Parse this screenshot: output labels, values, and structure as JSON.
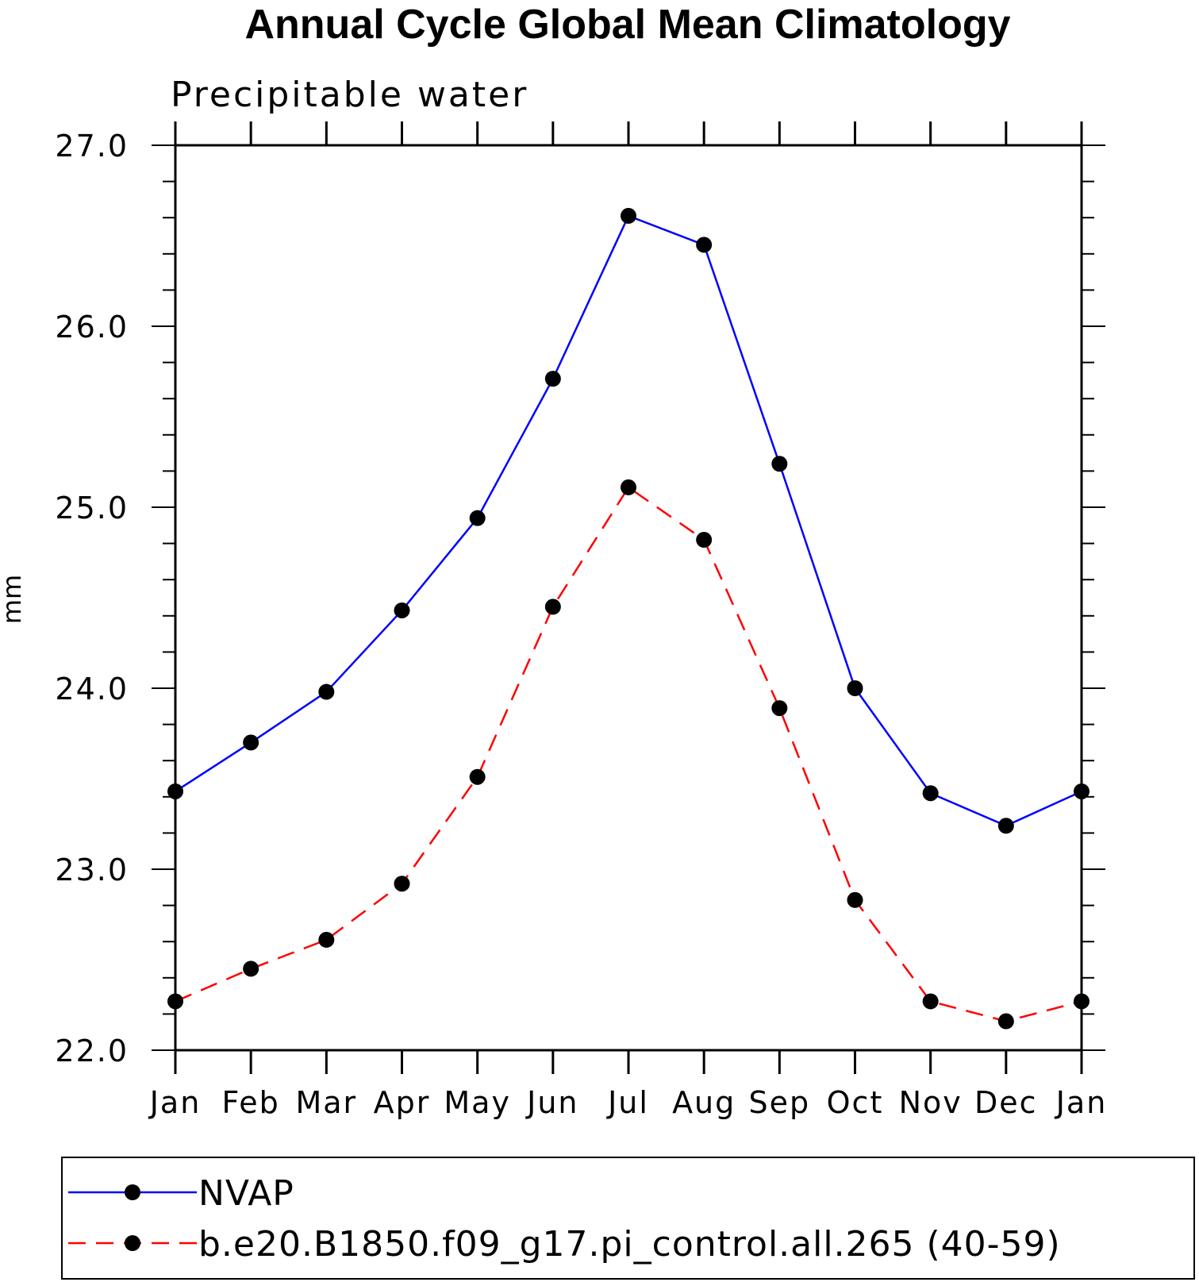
{
  "chart_data": {
    "type": "line",
    "title": "Annual Cycle Global Mean Climatology",
    "subtitle": "Precipitable water",
    "xlabel": "",
    "ylabel": "mm",
    "categories": [
      "Jan",
      "Feb",
      "Mar",
      "Apr",
      "May",
      "Jun",
      "Jul",
      "Aug",
      "Sep",
      "Oct",
      "Nov",
      "Dec",
      "Jan"
    ],
    "ylim": [
      22.0,
      27.0
    ],
    "yticks": [
      "22.0",
      "23.0",
      "24.0",
      "25.0",
      "26.0",
      "27.0"
    ],
    "grid": false,
    "legend_position": "bottom",
    "series": [
      {
        "name": "NVAP",
        "color": "#0000ff",
        "dash": "solid",
        "marker": "filled-circle",
        "values": [
          23.43,
          23.7,
          23.98,
          24.43,
          24.94,
          25.71,
          26.61,
          26.45,
          25.24,
          24.0,
          23.42,
          23.24,
          23.43
        ]
      },
      {
        "name": "b.e20.B1850.f09_g17.pi_control.all.265 (40-59)",
        "color": "#ff0000",
        "dash": "dashed",
        "marker": "filled-circle",
        "values": [
          22.27,
          22.45,
          22.61,
          22.92,
          23.51,
          24.45,
          25.11,
          24.82,
          23.89,
          22.83,
          22.27,
          22.16,
          22.27
        ]
      }
    ]
  }
}
